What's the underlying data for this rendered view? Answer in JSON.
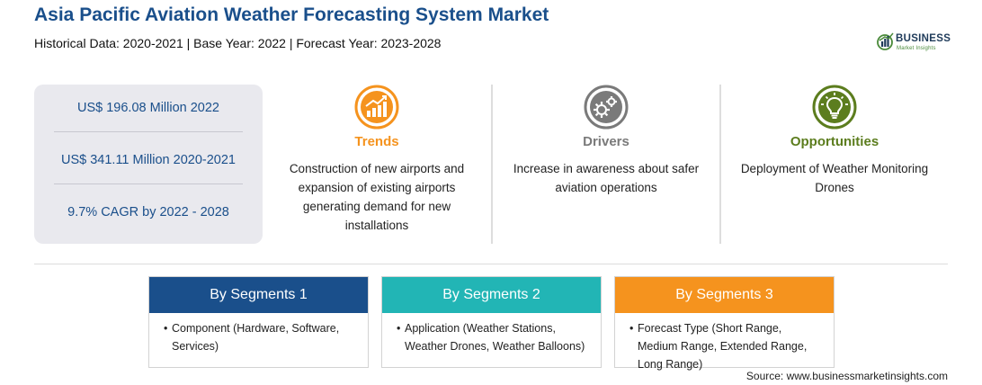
{
  "header": {
    "title": "Asia Pacific Aviation Weather Forecasting System Market",
    "subtitle": "Historical Data: 2020-2021 | Base Year: 2022 | Forecast Year: 2023-2028"
  },
  "logo": {
    "brand": "BUSINESS",
    "tagline": "Market Insights"
  },
  "stats": [
    "US$ 196.08 Million 2022",
    "US$ 341.11 Million 2020-2021",
    "9.7% CAGR by 2022 - 2028"
  ],
  "features": [
    {
      "icon": "trend-chart-icon",
      "label": "Trends",
      "color": "#f5931e",
      "desc": "Construction of new airports and expansion of existing airports generating demand for new installations"
    },
    {
      "icon": "gears-icon",
      "label": "Drivers",
      "color": "#7a7a7a",
      "desc": "Increase in awareness about safer aviation operations"
    },
    {
      "icon": "lightbulb-icon",
      "label": "Opportunities",
      "color": "#5c7d1e",
      "desc": "Deployment of Weather Monitoring Drones"
    }
  ],
  "segments": [
    {
      "title": "By Segments 1",
      "color": "#1a4f8b",
      "bullet": "•",
      "items": [
        "Component (Hardware, Software, Services)"
      ]
    },
    {
      "title": "By Segments 2",
      "color": "#22b5b5",
      "bullet": "•",
      "items": [
        "Application (Weather Stations, Weather Drones, Weather Balloons)"
      ]
    },
    {
      "title": "By Segments 3",
      "color": "#f5931e",
      "bullet": "•",
      "items": [
        "Forecast Type (Short Range, Medium Range, Extended Range, Long Range)"
      ]
    }
  ],
  "source": "Source: www.businessmarketinsights.com"
}
